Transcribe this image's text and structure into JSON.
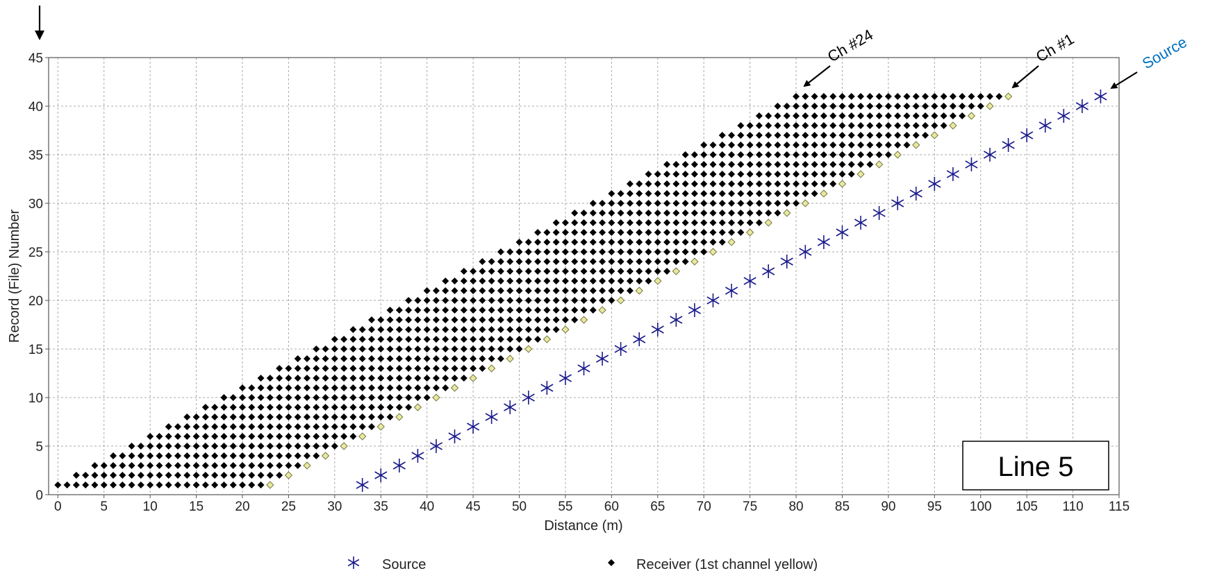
{
  "chart_data": {
    "type": "scatter",
    "xlabel": "Distance (m)",
    "ylabel": "Record (File) Number",
    "xlim": [
      -1,
      115
    ],
    "ylim": [
      0,
      45
    ],
    "x_ticks": [
      0,
      5,
      10,
      15,
      20,
      25,
      30,
      35,
      40,
      45,
      50,
      55,
      60,
      65,
      70,
      75,
      80,
      85,
      90,
      95,
      100,
      105,
      110,
      115
    ],
    "y_ticks": [
      0,
      5,
      10,
      15,
      20,
      25,
      30,
      35,
      40,
      45
    ],
    "grid": true,
    "legend_position": "bottom",
    "series": [
      {
        "name": "Source",
        "marker": "asterisk",
        "color": "#1a1a8c",
        "points": [
          [
            33,
            1
          ],
          [
            35,
            2
          ],
          [
            37,
            3
          ],
          [
            39,
            4
          ],
          [
            41,
            5
          ],
          [
            43,
            6
          ],
          [
            45,
            7
          ],
          [
            47,
            8
          ],
          [
            49,
            9
          ],
          [
            51,
            10
          ],
          [
            53,
            11
          ],
          [
            55,
            12
          ],
          [
            57,
            13
          ],
          [
            59,
            14
          ],
          [
            61,
            15
          ],
          [
            63,
            16
          ],
          [
            65,
            17
          ],
          [
            67,
            18
          ],
          [
            69,
            19
          ],
          [
            71,
            20
          ],
          [
            73,
            21
          ],
          [
            75,
            22
          ],
          [
            77,
            23
          ],
          [
            79,
            24
          ],
          [
            81,
            25
          ],
          [
            83,
            26
          ],
          [
            85,
            27
          ],
          [
            87,
            28
          ],
          [
            89,
            29
          ],
          [
            91,
            30
          ],
          [
            93,
            31
          ],
          [
            95,
            32
          ],
          [
            97,
            33
          ],
          [
            99,
            34
          ],
          [
            101,
            35
          ],
          [
            103,
            36
          ],
          [
            105,
            37
          ],
          [
            107,
            38
          ],
          [
            109,
            39
          ],
          [
            111,
            40
          ],
          [
            113,
            41
          ]
        ]
      },
      {
        "name": "Receiver (1st channel yellow)",
        "marker": "diamond",
        "color": "#000000",
        "first_channel_color": "#e8e8a0",
        "channels": 24,
        "spacing": 1,
        "records": [
          1,
          41
        ],
        "first_channel_x": [
          23,
          25,
          27,
          29,
          31,
          33,
          35,
          37,
          39,
          41,
          43,
          45,
          47,
          49,
          51,
          53,
          55,
          57,
          59,
          61,
          63,
          65,
          67,
          69,
          71,
          73,
          75,
          77,
          79,
          81,
          83,
          85,
          87,
          89,
          91,
          93,
          95,
          97,
          99,
          101,
          103
        ]
      }
    ],
    "annotations": [
      {
        "text": "Ch #24",
        "x": 80,
        "y": 41,
        "color": "#000000"
      },
      {
        "text": "Ch #1",
        "x": 103,
        "y": 41,
        "color": "#000000"
      },
      {
        "text": "Source",
        "x": 113,
        "y": 41,
        "color": "#0070c0"
      }
    ]
  },
  "labels": {
    "line_box": "Line 5",
    "legend_source": "Source",
    "legend_receiver": "Receiver (1st channel yellow)"
  }
}
